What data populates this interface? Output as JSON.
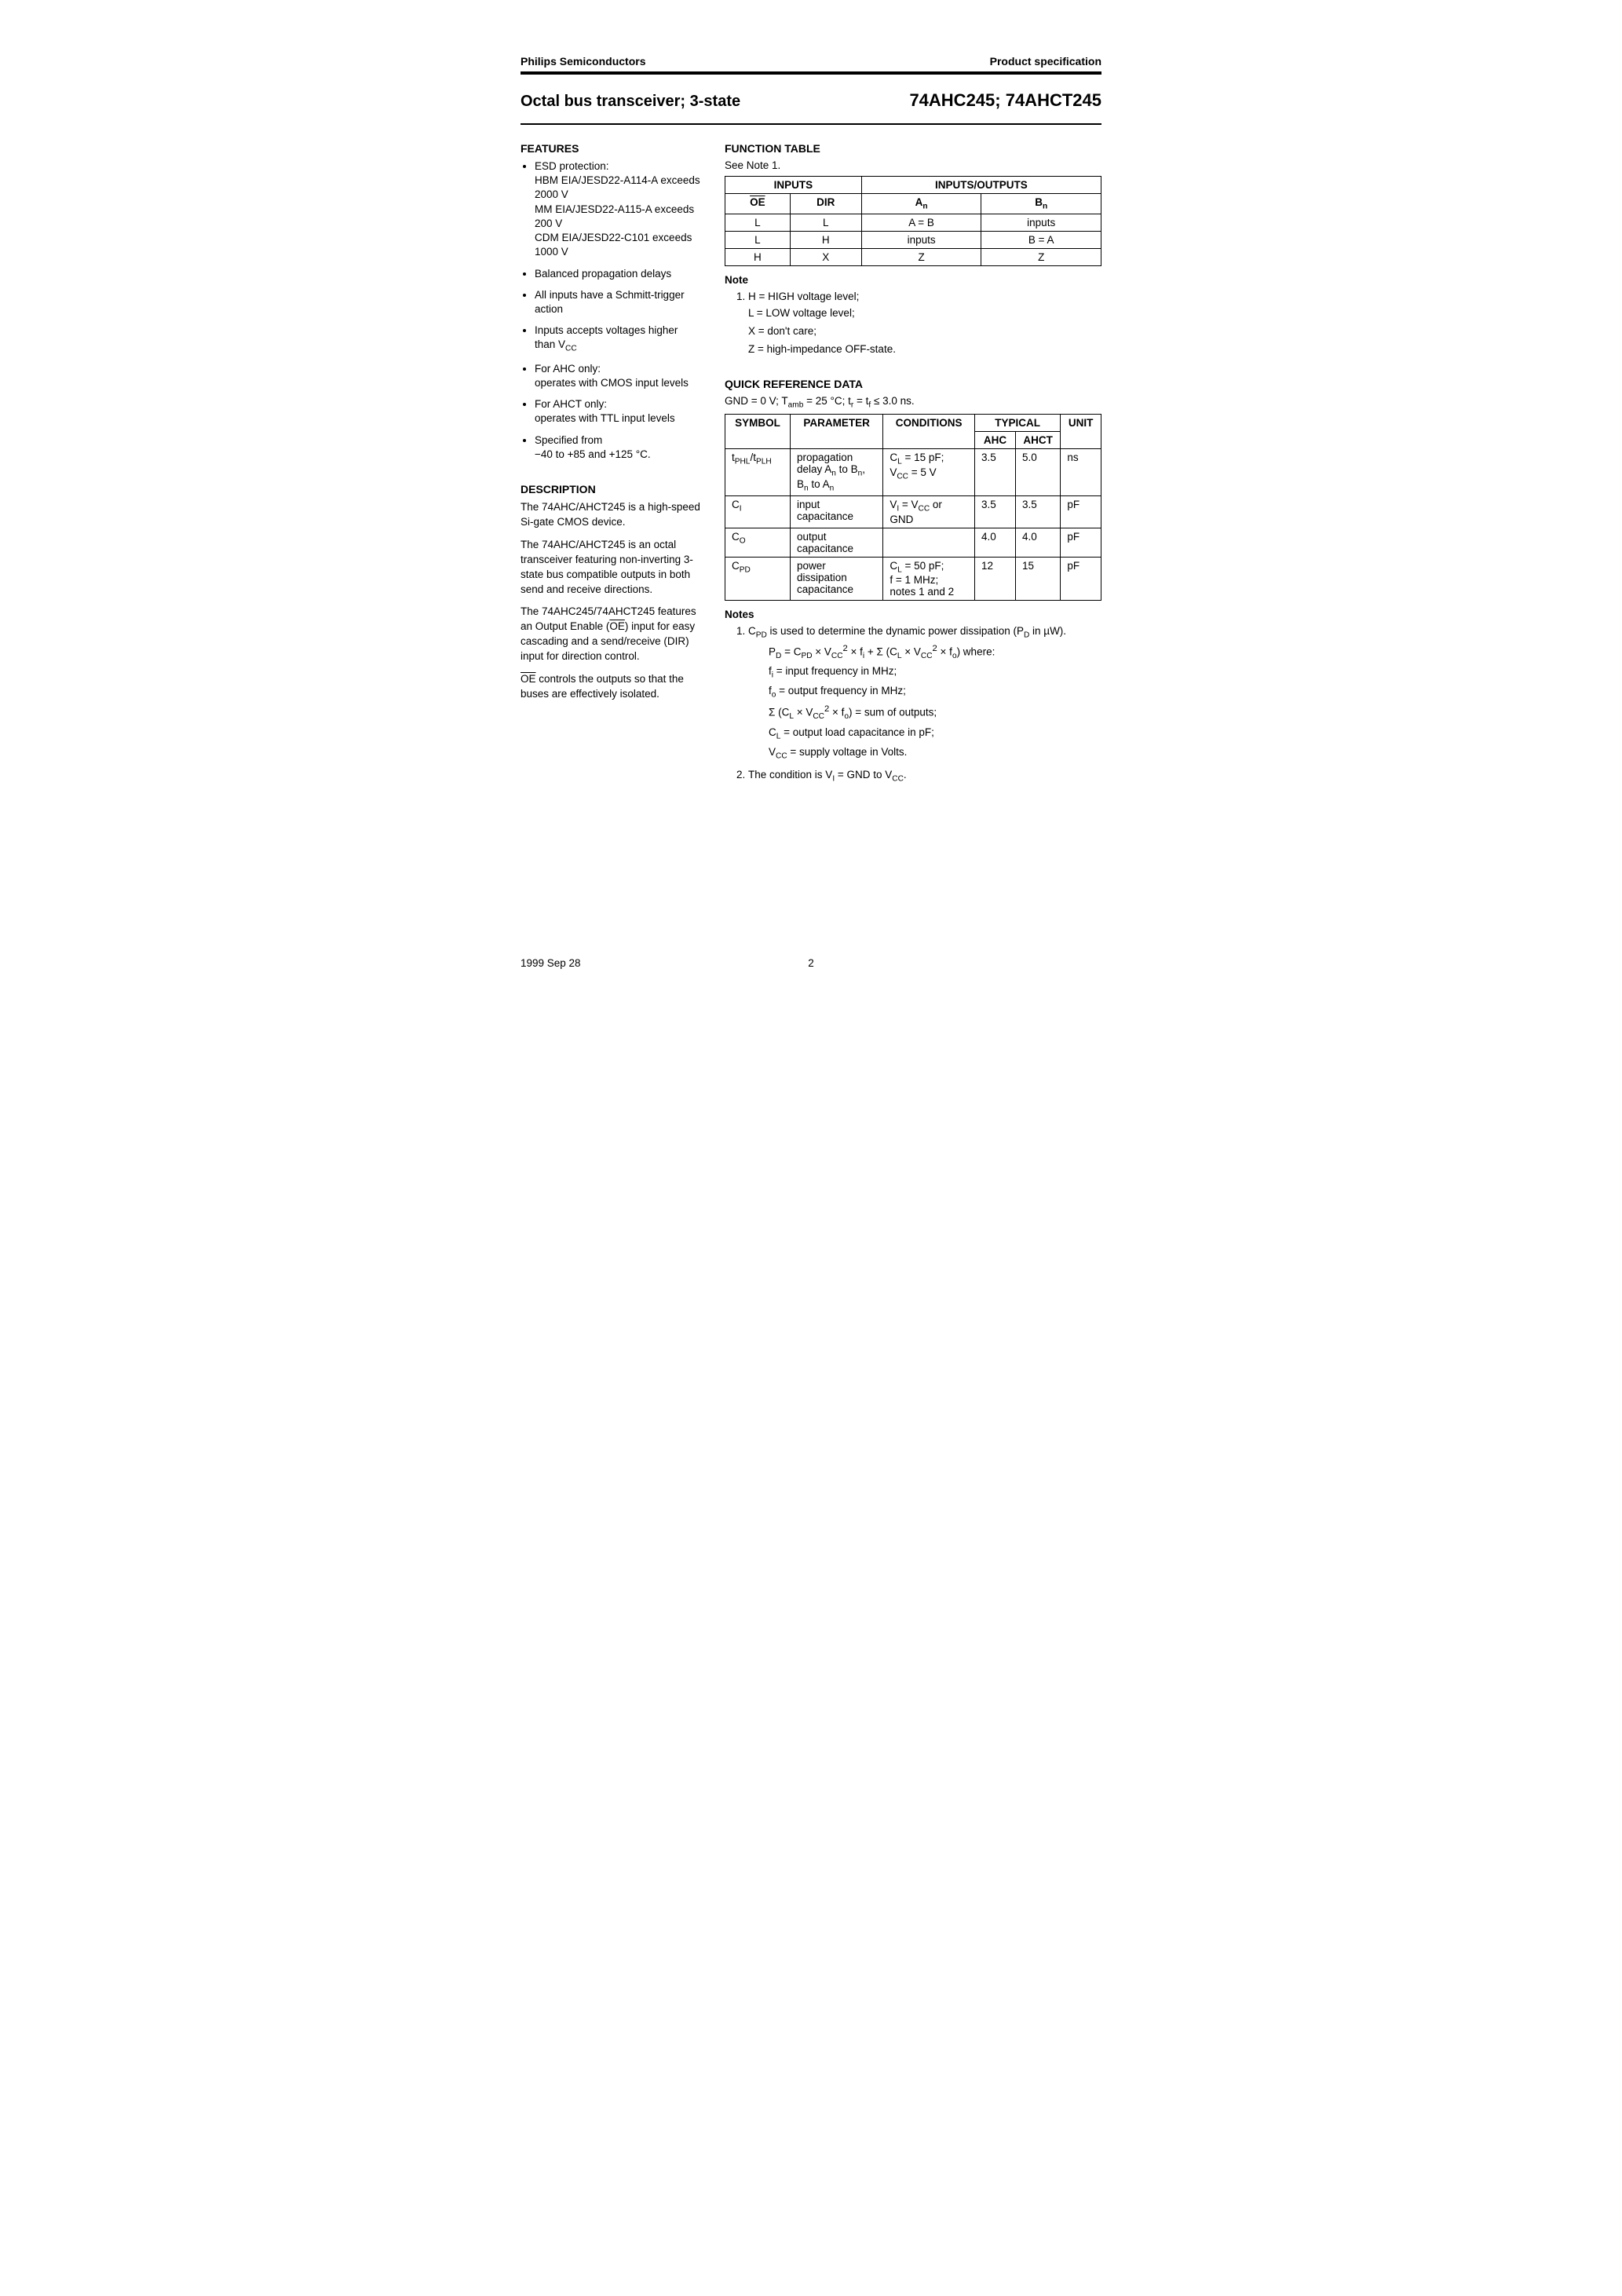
{
  "header": {
    "company": "Philips Semiconductors",
    "docType": "Product specification"
  },
  "title": {
    "left": "Octal bus transceiver; 3-state",
    "right": "74AHC245; 74AHCT245"
  },
  "features": {
    "heading": "FEATURES",
    "items": [
      "ESD protection:\nHBM EIA/JESD22-A114-A exceeds 2000 V\nMM EIA/JESD22-A115-A exceeds 200 V\nCDM EIA/JESD22-C101 exceeds 1000 V",
      "Balanced propagation delays",
      "All inputs have a Schmitt-trigger action",
      "Inputs accepts voltages higher than V_CC",
      "For AHC only:\noperates with CMOS input levels",
      "For AHCT only:\noperates with TTL input levels",
      "Specified from\n−40 to +85 and +125 °C."
    ]
  },
  "description": {
    "heading": "DESCRIPTION",
    "paragraphs": [
      "The 74AHC/AHCT245 is a high-speed Si-gate CMOS device.",
      "The 74AHC/AHCT245 is an octal transceiver featuring non-inverting 3-state bus compatible outputs in both send and receive directions.",
      "The 74AHC245/74AHCT245 features an Output Enable (OE) input for easy cascading and a send/receive (DIR) input for direction control.",
      "OE controls the outputs so that the buses are effectively isolated."
    ]
  },
  "functionTable": {
    "heading": "FUNCTION TABLE",
    "seeNote": "See Note 1.",
    "head1": [
      "INPUTS",
      "INPUTS/OUTPUTS"
    ],
    "head2": [
      "OE",
      "DIR",
      "A_n",
      "B_n"
    ],
    "rows": [
      [
        "L",
        "L",
        "A = B",
        "inputs"
      ],
      [
        "L",
        "H",
        "inputs",
        "B = A"
      ],
      [
        "H",
        "X",
        "Z",
        "Z"
      ]
    ],
    "noteHead": "Note",
    "noteLines": [
      "H = HIGH voltage level;",
      "L = LOW voltage level;",
      "X = don't care;",
      "Z = high-impedance OFF-state."
    ]
  },
  "qrd": {
    "heading": "QUICK REFERENCE DATA",
    "conditions": "GND = 0 V; T_amb = 25 °C; t_r = t_f ≤ 3.0 ns.",
    "head": {
      "symbol": "SYMBOL",
      "parameter": "PARAMETER",
      "conditions": "CONDITIONS",
      "typical": "TYPICAL",
      "ahc": "AHC",
      "ahct": "AHCT",
      "unit": "UNIT"
    },
    "rows": [
      {
        "symbol": "t_PHL/t_PLH",
        "parameter": "propagation delay A_n to B_n, B_n to A_n",
        "conditions": "C_L = 15 pF; V_CC = 5 V",
        "ahc": "3.5",
        "ahct": "5.0",
        "unit": "ns"
      },
      {
        "symbol": "C_I",
        "parameter": "input capacitance",
        "conditions": "V_I = V_CC or GND",
        "ahc": "3.5",
        "ahct": "3.5",
        "unit": "pF"
      },
      {
        "symbol": "C_O",
        "parameter": "output capacitance",
        "conditions": "",
        "ahc": "4.0",
        "ahct": "4.0",
        "unit": "pF"
      },
      {
        "symbol": "C_PD",
        "parameter": "power dissipation capacitance",
        "conditions": "C_L = 50 pF; f = 1 MHz; notes 1 and 2",
        "ahc": "12",
        "ahct": "15",
        "unit": "pF"
      }
    ],
    "notesHead": "Notes",
    "note1": {
      "lead": "C_PD is used to determine the dynamic power dissipation (P_D in µW).",
      "formula": "P_D = C_PD × V_CC^2 × f_i + Σ (C_L × V_CC^2 × f_o) where:",
      "lines": [
        "f_i = input frequency in MHz;",
        "f_o = output frequency in MHz;",
        "Σ (C_L × V_CC^2 × f_o) = sum of outputs;",
        "C_L = output load capacitance in pF;",
        "V_CC = supply voltage in Volts."
      ]
    },
    "note2": "The condition is V_I = GND to V_CC."
  },
  "footer": {
    "date": "1999 Sep 28",
    "page": "2"
  }
}
